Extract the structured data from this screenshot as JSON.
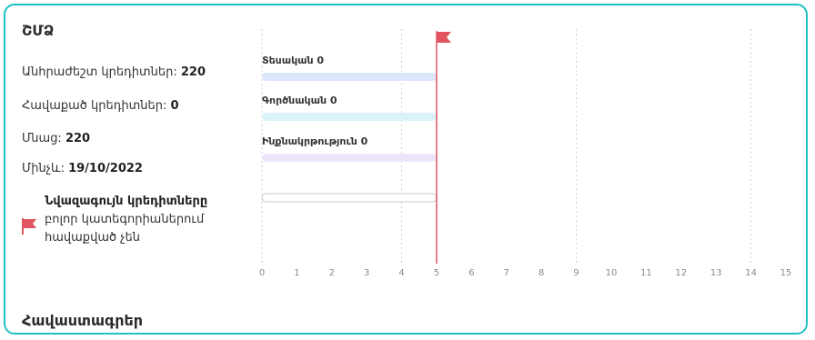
{
  "card": {
    "title": "ՇՄՁ",
    "stats": [
      {
        "label": "Անհրաժեշտ կրեդիտներ: ",
        "value": "220"
      },
      {
        "label": "Հավաքած կրեդիտներ: ",
        "value": "0"
      },
      {
        "label": "Մնաց: ",
        "value": "220"
      },
      {
        "label": "Մինչև: ",
        "value": "19/10/2022"
      }
    ],
    "note": {
      "strong": "Նվազագույն կրեդիտները",
      "text": "բոլոր կատեգորիաներում հավաքված չեն",
      "flag_icon": "flag-icon"
    },
    "footer_title": "Հավաստագրեր"
  },
  "chart_data": {
    "type": "bar",
    "orientation": "horizontal",
    "x_ticks": [
      0,
      1,
      2,
      3,
      4,
      5,
      6,
      7,
      8,
      9,
      10,
      11,
      12,
      13,
      14,
      15
    ],
    "xlim": [
      0,
      15
    ],
    "target_line": 5,
    "series": [
      {
        "name": "Տեսական 0",
        "value": 0,
        "max": 5,
        "color": "#dce6fb"
      },
      {
        "name": "Գործնական 0",
        "value": 0,
        "max": 5,
        "color": "#daf3f9"
      },
      {
        "name": "Ինքնակրթություն 0",
        "value": 0,
        "max": 5,
        "color": "#ede6fb"
      },
      {
        "name": "",
        "value": 0,
        "max": 5,
        "color": "#ffffff"
      }
    ],
    "grid_dashed_at": [
      0,
      4,
      9,
      14
    ],
    "colors": {
      "target": "#e0555f",
      "outline": "#c9c9c9",
      "grid": "#d0d0d0",
      "tick": "#8a8a8a"
    }
  }
}
